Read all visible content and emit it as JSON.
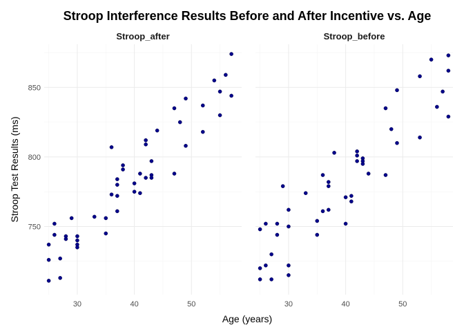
{
  "chart_data": {
    "type": "scatter",
    "title": "Stroop Interference Results Before and After Incentive vs. Age",
    "xlabel": "Age (years)",
    "ylabel": "Stroop Test Results (ms)",
    "xlim": [
      24.2,
      58.8
    ],
    "ylim": [
      701,
      881
    ],
    "x_ticks": [
      30,
      40,
      50
    ],
    "y_ticks": [
      750,
      800,
      850
    ],
    "x_minor": [
      25,
      35,
      45,
      55
    ],
    "y_minor": [
      725,
      775,
      825,
      875
    ],
    "grid": true,
    "point_color": "#00008B",
    "panels": [
      {
        "name": "Stroop_after",
        "points": [
          {
            "x": 25,
            "y": 737
          },
          {
            "x": 25,
            "y": 726
          },
          {
            "x": 25,
            "y": 711
          },
          {
            "x": 26,
            "y": 752
          },
          {
            "x": 26,
            "y": 744
          },
          {
            "x": 27,
            "y": 727
          },
          {
            "x": 27,
            "y": 713
          },
          {
            "x": 28,
            "y": 743
          },
          {
            "x": 28,
            "y": 741
          },
          {
            "x": 29,
            "y": 756
          },
          {
            "x": 30,
            "y": 743
          },
          {
            "x": 30,
            "y": 740
          },
          {
            "x": 30,
            "y": 737
          },
          {
            "x": 30,
            "y": 735
          },
          {
            "x": 33,
            "y": 757
          },
          {
            "x": 35,
            "y": 756
          },
          {
            "x": 35,
            "y": 745
          },
          {
            "x": 36,
            "y": 807
          },
          {
            "x": 36,
            "y": 773
          },
          {
            "x": 37,
            "y": 784
          },
          {
            "x": 37,
            "y": 780
          },
          {
            "x": 37,
            "y": 772
          },
          {
            "x": 37,
            "y": 761
          },
          {
            "x": 38,
            "y": 794
          },
          {
            "x": 38,
            "y": 791
          },
          {
            "x": 40,
            "y": 781
          },
          {
            "x": 40,
            "y": 775
          },
          {
            "x": 41,
            "y": 788
          },
          {
            "x": 41,
            "y": 774
          },
          {
            "x": 42,
            "y": 812
          },
          {
            "x": 42,
            "y": 809
          },
          {
            "x": 42,
            "y": 785
          },
          {
            "x": 43,
            "y": 797
          },
          {
            "x": 43,
            "y": 787
          },
          {
            "x": 43,
            "y": 785
          },
          {
            "x": 44,
            "y": 819
          },
          {
            "x": 47,
            "y": 835
          },
          {
            "x": 47,
            "y": 788
          },
          {
            "x": 48,
            "y": 825
          },
          {
            "x": 49,
            "y": 842
          },
          {
            "x": 49,
            "y": 808
          },
          {
            "x": 52,
            "y": 837
          },
          {
            "x": 52,
            "y": 818
          },
          {
            "x": 54,
            "y": 855
          },
          {
            "x": 55,
            "y": 847
          },
          {
            "x": 55,
            "y": 830
          },
          {
            "x": 56,
            "y": 859
          },
          {
            "x": 57,
            "y": 874
          },
          {
            "x": 57,
            "y": 844
          }
        ]
      },
      {
        "name": "Stroop_before",
        "points": [
          {
            "x": 25,
            "y": 748
          },
          {
            "x": 25,
            "y": 720
          },
          {
            "x": 25,
            "y": 712
          },
          {
            "x": 26,
            "y": 752
          },
          {
            "x": 26,
            "y": 722
          },
          {
            "x": 27,
            "y": 730
          },
          {
            "x": 27,
            "y": 712
          },
          {
            "x": 28,
            "y": 752
          },
          {
            "x": 28,
            "y": 744
          },
          {
            "x": 29,
            "y": 779
          },
          {
            "x": 30,
            "y": 762
          },
          {
            "x": 30,
            "y": 750
          },
          {
            "x": 30,
            "y": 722
          },
          {
            "x": 30,
            "y": 715
          },
          {
            "x": 33,
            "y": 774
          },
          {
            "x": 35,
            "y": 754
          },
          {
            "x": 35,
            "y": 744
          },
          {
            "x": 36,
            "y": 787
          },
          {
            "x": 36,
            "y": 761
          },
          {
            "x": 37,
            "y": 782
          },
          {
            "x": 37,
            "y": 779
          },
          {
            "x": 37,
            "y": 762
          },
          {
            "x": 38,
            "y": 803
          },
          {
            "x": 40,
            "y": 771
          },
          {
            "x": 40,
            "y": 752
          },
          {
            "x": 41,
            "y": 772
          },
          {
            "x": 41,
            "y": 768
          },
          {
            "x": 42,
            "y": 804
          },
          {
            "x": 42,
            "y": 801
          },
          {
            "x": 42,
            "y": 797
          },
          {
            "x": 43,
            "y": 799
          },
          {
            "x": 43,
            "y": 797
          },
          {
            "x": 43,
            "y": 795
          },
          {
            "x": 44,
            "y": 788
          },
          {
            "x": 47,
            "y": 835
          },
          {
            "x": 47,
            "y": 787
          },
          {
            "x": 48,
            "y": 820
          },
          {
            "x": 49,
            "y": 848
          },
          {
            "x": 49,
            "y": 810
          },
          {
            "x": 53,
            "y": 858
          },
          {
            "x": 53,
            "y": 814
          },
          {
            "x": 55,
            "y": 870
          },
          {
            "x": 56,
            "y": 836
          },
          {
            "x": 57,
            "y": 847
          },
          {
            "x": 58,
            "y": 873
          },
          {
            "x": 58,
            "y": 862
          },
          {
            "x": 58,
            "y": 829
          }
        ]
      }
    ]
  }
}
